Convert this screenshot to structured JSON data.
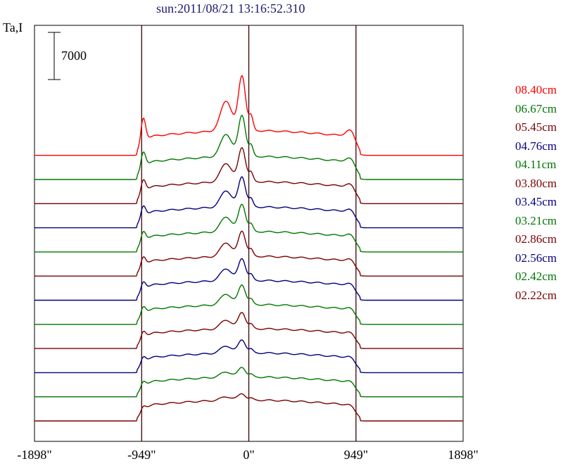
{
  "title": "sun:2011/08/21 13:16:52.310",
  "chart_data": {
    "type": "line",
    "title": "sun:2011/08/21 13:16:52.310",
    "ylabel": "Ta,I",
    "scale_bar_label": "7000",
    "scale_bar_value": 7000,
    "xlabel": "",
    "x_ticks": [
      "-1898\"",
      "-949\"",
      "0\"",
      "949\"",
      "1898\""
    ],
    "x_tick_values": [
      -1898,
      -949,
      0,
      949,
      1898
    ],
    "xlim": [
      -1898,
      1898
    ],
    "vertical_lines": [
      -949,
      0,
      949
    ],
    "series": [
      {
        "name": "08.40cm",
        "color": "#ff0000",
        "baseline": 9.0,
        "peak": 1.0,
        "limb": 0.85,
        "plateau": 0.45
      },
      {
        "name": "06.67cm",
        "color": "#007700",
        "baseline": 8.0,
        "peak": 0.75,
        "limb": 0.55,
        "plateau": 0.42
      },
      {
        "name": "05.45cm",
        "color": "#7b0000",
        "baseline": 7.0,
        "peak": 0.62,
        "limb": 0.45,
        "plateau": 0.4
      },
      {
        "name": "04.76cm",
        "color": "#00007f",
        "baseline": 6.0,
        "peak": 0.55,
        "limb": 0.4,
        "plateau": 0.38
      },
      {
        "name": "04.11cm",
        "color": "#007700",
        "baseline": 5.0,
        "peak": 0.5,
        "limb": 0.36,
        "plateau": 0.37
      },
      {
        "name": "03.80cm",
        "color": "#7b0000",
        "baseline": 4.0,
        "peak": 0.46,
        "limb": 0.33,
        "plateau": 0.36
      },
      {
        "name": "03.45cm",
        "color": "#00007f",
        "baseline": 3.0,
        "peak": 0.4,
        "limb": 0.3,
        "plateau": 0.36
      },
      {
        "name": "03.21cm",
        "color": "#007700",
        "baseline": 2.0,
        "peak": 0.36,
        "limb": 0.28,
        "plateau": 0.36
      },
      {
        "name": "02.86cm",
        "color": "#7b0000",
        "baseline": 1.0,
        "peak": 0.3,
        "limb": 0.26,
        "plateau": 0.36
      },
      {
        "name": "02.56cm",
        "color": "#00007f",
        "baseline": 0.0,
        "peak": 0.24,
        "limb": 0.22,
        "plateau": 0.36
      },
      {
        "name": "02.42cm",
        "color": "#007700",
        "baseline": -1.0,
        "peak": 0.18,
        "limb": 0.2,
        "plateau": 0.36
      },
      {
        "name": "02.22cm",
        "color": "#7b0000",
        "baseline": -2.0,
        "peak": 0.12,
        "limb": 0.16,
        "plateau": 0.38
      }
    ],
    "grid": false,
    "legend_position": "right"
  }
}
